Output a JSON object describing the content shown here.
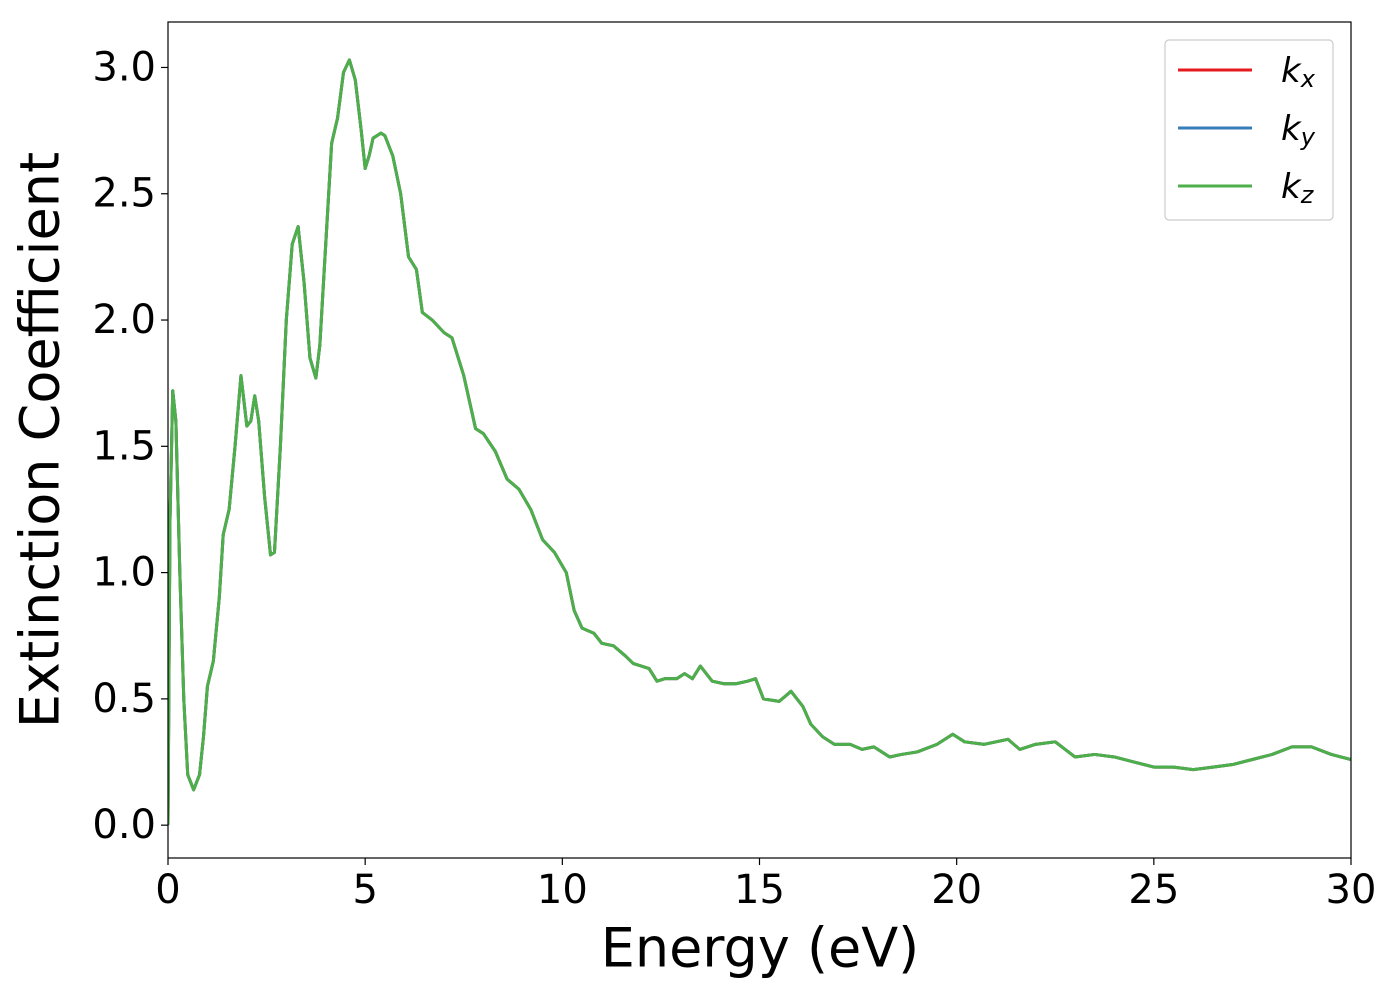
{
  "chart_data": {
    "type": "line",
    "xlabel": "Energy (eV)",
    "ylabel": "Extinction Coefficient",
    "x": [
      0,
      0.05,
      0.12,
      0.2,
      0.3,
      0.4,
      0.5,
      0.65,
      0.8,
      0.9,
      1.0,
      1.15,
      1.3,
      1.4,
      1.55,
      1.7,
      1.85,
      2.0,
      2.1,
      2.2,
      2.3,
      2.45,
      2.6,
      2.7,
      2.85,
      3.0,
      3.15,
      3.3,
      3.45,
      3.6,
      3.75,
      3.85,
      4.0,
      4.15,
      4.3,
      4.45,
      4.6,
      4.75,
      4.9,
      5.0,
      5.1,
      5.2,
      5.4,
      5.5,
      5.7,
      5.9,
      6.1,
      6.3,
      6.45,
      6.7,
      7.0,
      7.2,
      7.5,
      7.8,
      8.0,
      8.3,
      8.6,
      8.9,
      9.2,
      9.5,
      9.8,
      10.1,
      10.3,
      10.5,
      10.8,
      11.0,
      11.3,
      11.6,
      11.8,
      12.2,
      12.4,
      12.6,
      12.9,
      13.1,
      13.3,
      13.5,
      13.8,
      14.1,
      14.4,
      14.7,
      14.9,
      15.1,
      15.5,
      15.8,
      16.1,
      16.3,
      16.6,
      16.9,
      17.3,
      17.6,
      17.9,
      18.3,
      18.6,
      19.0,
      19.5,
      19.9,
      20.2,
      20.7,
      21.0,
      21.3,
      21.6,
      22.0,
      22.5,
      23.0,
      23.5,
      24.0,
      24.5,
      25.0,
      25.5,
      26.0,
      26.5,
      27.0,
      27.5,
      28.0,
      28.5,
      29.0,
      29.5,
      30.0
    ],
    "series": [
      {
        "name": "kx",
        "color": "#e41a1c",
        "values": [
          0.0,
          1.2,
          1.72,
          1.6,
          1.0,
          0.5,
          0.2,
          0.14,
          0.2,
          0.35,
          0.55,
          0.65,
          0.9,
          1.15,
          1.25,
          1.5,
          1.78,
          1.58,
          1.6,
          1.7,
          1.6,
          1.3,
          1.07,
          1.08,
          1.5,
          2.0,
          2.3,
          2.37,
          2.15,
          1.85,
          1.77,
          1.9,
          2.3,
          2.7,
          2.8,
          2.98,
          3.03,
          2.95,
          2.75,
          2.6,
          2.65,
          2.72,
          2.74,
          2.73,
          2.65,
          2.5,
          2.25,
          2.2,
          2.03,
          2.0,
          1.95,
          1.93,
          1.78,
          1.57,
          1.55,
          1.48,
          1.37,
          1.33,
          1.25,
          1.13,
          1.08,
          1.0,
          0.85,
          0.78,
          0.76,
          0.72,
          0.71,
          0.67,
          0.64,
          0.62,
          0.57,
          0.58,
          0.58,
          0.6,
          0.58,
          0.63,
          0.57,
          0.56,
          0.56,
          0.57,
          0.58,
          0.5,
          0.49,
          0.53,
          0.47,
          0.4,
          0.35,
          0.32,
          0.32,
          0.3,
          0.31,
          0.27,
          0.28,
          0.29,
          0.32,
          0.36,
          0.33,
          0.32,
          0.33,
          0.34,
          0.3,
          0.32,
          0.33,
          0.27,
          0.28,
          0.27,
          0.25,
          0.23,
          0.23,
          0.22,
          0.23,
          0.24,
          0.26,
          0.28,
          0.31,
          0.31,
          0.28,
          0.26
        ]
      },
      {
        "name": "ky",
        "color": "#377eb8",
        "values": [
          0.0,
          1.2,
          1.72,
          1.6,
          1.0,
          0.5,
          0.2,
          0.14,
          0.2,
          0.35,
          0.55,
          0.65,
          0.9,
          1.15,
          1.25,
          1.5,
          1.78,
          1.58,
          1.6,
          1.7,
          1.6,
          1.3,
          1.07,
          1.08,
          1.5,
          2.0,
          2.3,
          2.37,
          2.15,
          1.85,
          1.77,
          1.9,
          2.3,
          2.7,
          2.8,
          2.98,
          3.03,
          2.95,
          2.75,
          2.6,
          2.65,
          2.72,
          2.74,
          2.73,
          2.65,
          2.5,
          2.25,
          2.2,
          2.03,
          2.0,
          1.95,
          1.93,
          1.78,
          1.57,
          1.55,
          1.48,
          1.37,
          1.33,
          1.25,
          1.13,
          1.08,
          1.0,
          0.85,
          0.78,
          0.76,
          0.72,
          0.71,
          0.67,
          0.64,
          0.62,
          0.57,
          0.58,
          0.58,
          0.6,
          0.58,
          0.63,
          0.57,
          0.56,
          0.56,
          0.57,
          0.58,
          0.5,
          0.49,
          0.53,
          0.47,
          0.4,
          0.35,
          0.32,
          0.32,
          0.3,
          0.31,
          0.27,
          0.28,
          0.29,
          0.32,
          0.36,
          0.33,
          0.32,
          0.33,
          0.34,
          0.3,
          0.32,
          0.33,
          0.27,
          0.28,
          0.27,
          0.25,
          0.23,
          0.23,
          0.22,
          0.23,
          0.24,
          0.26,
          0.28,
          0.31,
          0.31,
          0.28,
          0.26
        ]
      },
      {
        "name": "kz",
        "color": "#4daf4a",
        "values": [
          0.0,
          1.2,
          1.72,
          1.6,
          1.0,
          0.5,
          0.2,
          0.14,
          0.2,
          0.35,
          0.55,
          0.65,
          0.9,
          1.15,
          1.25,
          1.5,
          1.78,
          1.58,
          1.6,
          1.7,
          1.6,
          1.3,
          1.07,
          1.08,
          1.5,
          2.0,
          2.3,
          2.37,
          2.15,
          1.85,
          1.77,
          1.9,
          2.3,
          2.7,
          2.8,
          2.98,
          3.03,
          2.95,
          2.75,
          2.6,
          2.65,
          2.72,
          2.74,
          2.73,
          2.65,
          2.5,
          2.25,
          2.2,
          2.03,
          2.0,
          1.95,
          1.93,
          1.78,
          1.57,
          1.55,
          1.48,
          1.37,
          1.33,
          1.25,
          1.13,
          1.08,
          1.0,
          0.85,
          0.78,
          0.76,
          0.72,
          0.71,
          0.67,
          0.64,
          0.62,
          0.57,
          0.58,
          0.58,
          0.6,
          0.58,
          0.63,
          0.57,
          0.56,
          0.56,
          0.57,
          0.58,
          0.5,
          0.49,
          0.53,
          0.47,
          0.4,
          0.35,
          0.32,
          0.32,
          0.3,
          0.31,
          0.27,
          0.28,
          0.29,
          0.32,
          0.36,
          0.33,
          0.32,
          0.33,
          0.34,
          0.3,
          0.32,
          0.33,
          0.27,
          0.28,
          0.27,
          0.25,
          0.23,
          0.23,
          0.22,
          0.23,
          0.24,
          0.26,
          0.28,
          0.31,
          0.31,
          0.28,
          0.26
        ]
      }
    ],
    "xlim": [
      0,
      30
    ],
    "xticks": [
      0,
      5,
      10,
      15,
      20,
      25,
      30
    ],
    "ylim": [
      -0.13,
      3.18
    ],
    "yticks": [
      {
        "value": 0,
        "label": "0.0"
      },
      0.5,
      {
        "value": 1,
        "label": "1.0"
      },
      1.5,
      {
        "value": 2,
        "label": "2.0"
      },
      2.5,
      {
        "value": 3,
        "label": "3.0"
      }
    ],
    "grid": false,
    "legend": "upper right"
  }
}
